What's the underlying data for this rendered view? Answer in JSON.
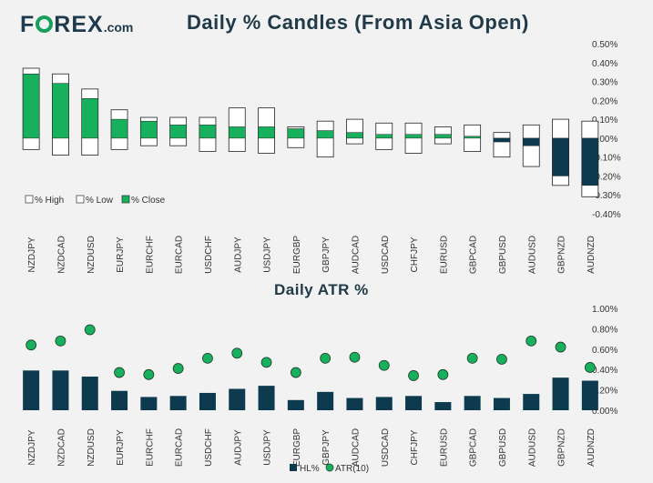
{
  "logo": {
    "text_a": "F",
    "text_b": "REX",
    "text_c": ".com"
  },
  "chart_data": [
    {
      "type": "bar",
      "title": "Daily % Candles (From Asia Open)",
      "categories": [
        "NZDJPY",
        "NZDCAD",
        "NZDUSD",
        "EURJPY",
        "EURCHF",
        "EURCAD",
        "USDCHF",
        "AUDJPY",
        "USDJPY",
        "EURGBP",
        "GBPJPY",
        "AUDCAD",
        "USDCAD",
        "CHFJPY",
        "EURUSD",
        "GBPCAD",
        "GBPUSD",
        "AUDUSD",
        "GBPNZD",
        "AUDNZD"
      ],
      "series": [
        {
          "name": "% High",
          "values": [
            0.37,
            0.34,
            0.26,
            0.15,
            0.11,
            0.11,
            0.11,
            0.16,
            0.16,
            0.06,
            0.09,
            0.1,
            0.08,
            0.08,
            0.06,
            0.07,
            0.03,
            0.07,
            0.1,
            0.09
          ]
        },
        {
          "name": "% Low",
          "values": [
            -0.06,
            -0.09,
            -0.09,
            -0.06,
            -0.04,
            -0.04,
            -0.07,
            -0.07,
            -0.08,
            -0.05,
            -0.1,
            -0.03,
            -0.06,
            -0.08,
            -0.03,
            -0.07,
            -0.1,
            -0.15,
            -0.25,
            -0.31
          ]
        },
        {
          "name": "% Close",
          "values": [
            0.34,
            0.29,
            0.21,
            0.1,
            0.09,
            0.07,
            0.07,
            0.06,
            0.06,
            0.05,
            0.04,
            0.03,
            0.02,
            0.02,
            0.02,
            0.01,
            -0.02,
            -0.04,
            -0.2,
            -0.25
          ]
        }
      ],
      "ylim": [
        -0.4,
        0.5
      ],
      "yticks": [
        "-0.40%",
        "-0.30%",
        "-0.20%",
        "-0.10%",
        "0.00%",
        "0.10%",
        "0.20%",
        "0.30%",
        "0.40%",
        "0.50%"
      ],
      "legend": "bottom-left",
      "colors": {
        "up": "#17b05d",
        "down": "#0d3a4f",
        "frame": "#ffffff",
        "border": "#222222"
      }
    },
    {
      "type": "bar",
      "title": "Daily ATR %",
      "categories": [
        "NZDJPY",
        "NZDCAD",
        "NZDUSD",
        "EURJPY",
        "EURCHF",
        "EURCAD",
        "USDCHF",
        "AUDJPY",
        "USDJPY",
        "EURGBP",
        "GBPJPY",
        "AUDCAD",
        "USDCAD",
        "CHFJPY",
        "EURUSD",
        "GBPCAD",
        "GBPUSD",
        "AUDUSD",
        "GBPNZD",
        "AUDNZD"
      ],
      "series": [
        {
          "name": "HL%",
          "type": "bar",
          "values": [
            0.39,
            0.39,
            0.33,
            0.19,
            0.13,
            0.14,
            0.17,
            0.21,
            0.24,
            0.1,
            0.18,
            0.12,
            0.13,
            0.14,
            0.08,
            0.14,
            0.12,
            0.16,
            0.32,
            0.29
          ]
        },
        {
          "name": "ATR(10)",
          "type": "scatter",
          "values": [
            0.64,
            0.68,
            0.79,
            0.37,
            0.35,
            0.41,
            0.51,
            0.56,
            0.47,
            0.37,
            0.51,
            0.52,
            0.44,
            0.34,
            0.35,
            0.51,
            0.5,
            0.68,
            0.62,
            0.42
          ]
        }
      ],
      "ylim": [
        0,
        1.0
      ],
      "yticks": [
        "0.00%",
        "0.20%",
        "0.40%",
        "0.60%",
        "0.80%",
        "1.00%"
      ],
      "legend": "bottom-center",
      "colors": {
        "bar": "#0d3a4f",
        "dot": "#17b05d",
        "dot_border": "#1f3a2a"
      }
    }
  ]
}
